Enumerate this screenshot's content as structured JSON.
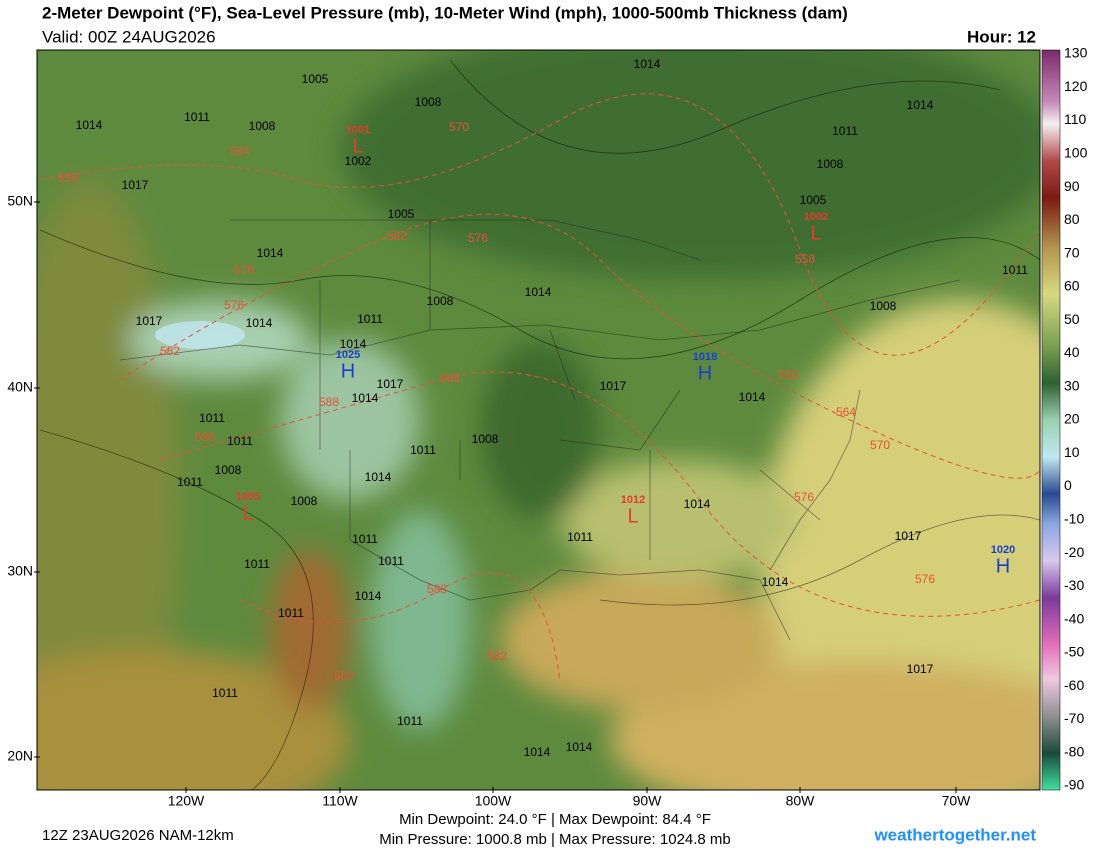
{
  "header": {
    "title": "2-Meter Dewpoint (°F), Sea-Level Pressure (mb), 10-Meter Wind (mph), 1000-500mb Thickness (dam)",
    "valid": "Valid: 00Z 24AUG2026",
    "hour": "Hour: 12"
  },
  "map": {
    "lat_labels": [
      "50N",
      "40N",
      "30N",
      "20N"
    ],
    "lon_labels": [
      "120W",
      "110W",
      "100W",
      "90W",
      "80W",
      "70W"
    ],
    "highs": [
      {
        "symbol": "H",
        "value": "1025"
      },
      {
        "symbol": "H",
        "value": "1018"
      },
      {
        "symbol": "H",
        "value": "1020"
      }
    ],
    "lows": [
      {
        "symbol": "L",
        "value": "1001"
      },
      {
        "symbol": "L",
        "value": "1002"
      },
      {
        "symbol": "L",
        "value": "1005"
      },
      {
        "symbol": "L",
        "value": "1012"
      }
    ],
    "pressure_labels": [
      "1005",
      "1008",
      "1014",
      "1014",
      "1014",
      "1011",
      "1008",
      "1002",
      "1011",
      "1008",
      "1017",
      "1005",
      "1005",
      "1014",
      "1011",
      "1008",
      "1014",
      "1008",
      "1017",
      "1014",
      "1011",
      "1014",
      "1017",
      "1014",
      "1017",
      "1014",
      "1011",
      "1011",
      "1008",
      "1008",
      "1011",
      "1011",
      "1014",
      "1008",
      "1014",
      "1011",
      "1011",
      "1011",
      "1011",
      "1017",
      "1014",
      "1014",
      "1011",
      "1017",
      "1011",
      "1011",
      "1014",
      "1014"
    ],
    "thickness_labels": [
      "558",
      "564",
      "570",
      "582",
      "576",
      "576",
      "576",
      "582",
      "588",
      "588",
      "588",
      "558",
      "558",
      "564",
      "570",
      "576",
      "576",
      "588",
      "582",
      "582"
    ]
  },
  "colorbar": {
    "ticks": [
      130,
      120,
      110,
      100,
      90,
      80,
      70,
      60,
      50,
      40,
      30,
      20,
      10,
      0,
      -10,
      -20,
      -30,
      -40,
      -50,
      -60,
      -70,
      -80,
      -90
    ]
  },
  "footer": {
    "run": "12Z 23AUG2026 NAM-12km",
    "dewpoint": "Min Dewpoint:  24.0 °F | Max Dewpoint:  84.4 °F",
    "pressure": "Min Pressure: 1000.8 mb | Max Pressure: 1024.8 mb",
    "site": "weathertogether.net"
  }
}
